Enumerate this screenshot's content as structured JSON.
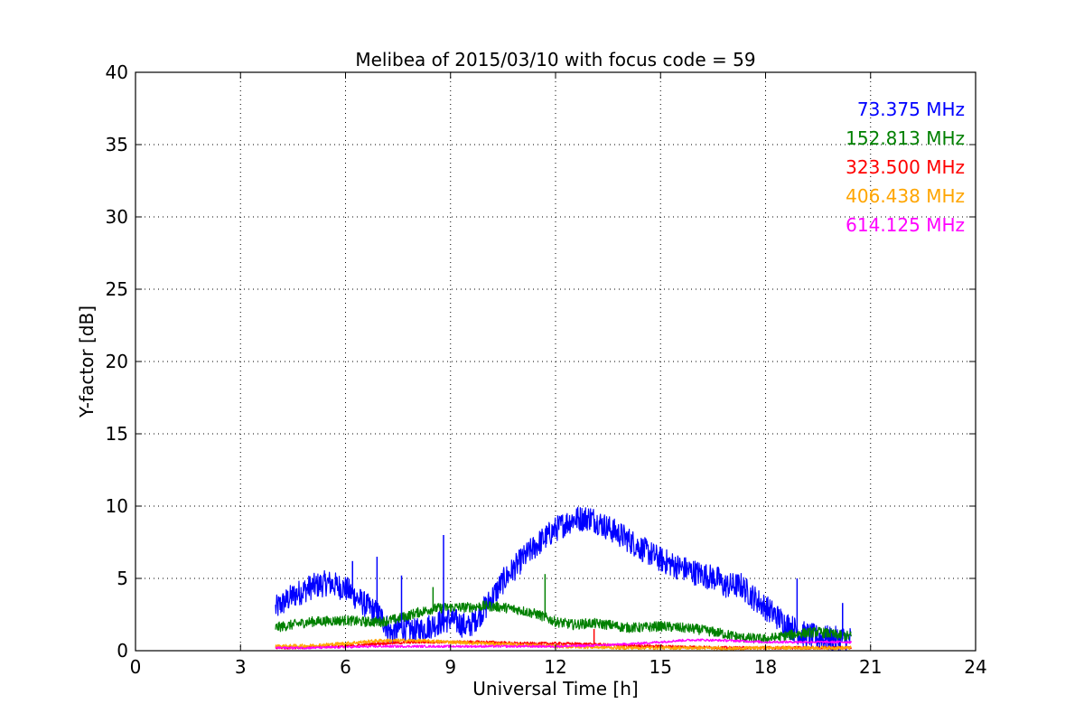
{
  "chart_data": {
    "type": "line",
    "title": "Melibea of 2015/03/10 with focus code = 59",
    "xlabel": "Universal Time [h]",
    "ylabel": "Y-factor [dB]",
    "xlim": [
      0,
      24
    ],
    "ylim": [
      0,
      40
    ],
    "xticks": [
      "0",
      "3",
      "6",
      "9",
      "12",
      "15",
      "18",
      "21",
      "24"
    ],
    "yticks": [
      "0",
      "5",
      "10",
      "15",
      "20",
      "25",
      "30",
      "35",
      "40"
    ],
    "grid": true,
    "legend_placement": "top-right",
    "series": [
      {
        "name": "73.375 MHz",
        "color": "#0000ff",
        "noise": 0.9,
        "points": [
          [
            4.0,
            2.9
          ],
          [
            4.5,
            3.8
          ],
          [
            5.0,
            4.4
          ],
          [
            5.5,
            4.7
          ],
          [
            6.0,
            4.3
          ],
          [
            6.5,
            3.3
          ],
          [
            7.0,
            2.4
          ],
          [
            7.3,
            1.2
          ],
          [
            7.6,
            1.6
          ],
          [
            8.0,
            1.3
          ],
          [
            8.5,
            1.8
          ],
          [
            9.0,
            2.2
          ],
          [
            9.5,
            1.6
          ],
          [
            10.0,
            3.0
          ],
          [
            10.5,
            4.8
          ],
          [
            11.0,
            6.2
          ],
          [
            11.5,
            7.4
          ],
          [
            12.0,
            8.4
          ],
          [
            12.5,
            9.1
          ],
          [
            13.0,
            9.2
          ],
          [
            13.5,
            8.5
          ],
          [
            14.0,
            7.8
          ],
          [
            14.5,
            7.0
          ],
          [
            15.0,
            6.3
          ],
          [
            15.5,
            5.8
          ],
          [
            16.0,
            5.4
          ],
          [
            16.7,
            4.9
          ],
          [
            16.75,
            4.5
          ],
          [
            17.3,
            4.5
          ],
          [
            17.6,
            3.8
          ],
          [
            18.0,
            3.0
          ],
          [
            18.5,
            2.0
          ],
          [
            19.0,
            1.2
          ],
          [
            19.5,
            0.9
          ],
          [
            20.0,
            0.8
          ],
          [
            20.45,
            0.8
          ]
        ]
      },
      {
        "name": "152.813 MHz",
        "color": "#008000",
        "noise": 0.35,
        "points": [
          [
            4.0,
            1.6
          ],
          [
            4.5,
            1.8
          ],
          [
            5.0,
            2.0
          ],
          [
            6.0,
            2.1
          ],
          [
            6.5,
            2.0
          ],
          [
            7.0,
            2.0
          ],
          [
            7.5,
            2.2
          ],
          [
            8.0,
            2.6
          ],
          [
            8.5,
            2.9
          ],
          [
            9.0,
            3.0
          ],
          [
            9.5,
            3.0
          ],
          [
            10.0,
            3.1
          ],
          [
            10.5,
            3.0
          ],
          [
            11.0,
            2.8
          ],
          [
            11.5,
            2.5
          ],
          [
            12.0,
            2.0
          ],
          [
            12.5,
            1.8
          ],
          [
            13.0,
            1.9
          ],
          [
            13.5,
            1.8
          ],
          [
            14.0,
            1.6
          ],
          [
            14.5,
            1.6
          ],
          [
            15.0,
            1.7
          ],
          [
            15.5,
            1.6
          ],
          [
            16.0,
            1.5
          ],
          [
            16.75,
            1.2
          ],
          [
            17.3,
            0.9
          ],
          [
            18.0,
            0.8
          ],
          [
            18.5,
            1.0
          ],
          [
            19.0,
            1.2
          ],
          [
            19.5,
            1.3
          ],
          [
            20.0,
            1.1
          ],
          [
            20.45,
            1.0
          ]
        ]
      },
      {
        "name": "323.500 MHz",
        "color": "#ff0000",
        "noise": 0.1,
        "points": [
          [
            4.0,
            0.2
          ],
          [
            5.0,
            0.25
          ],
          [
            6.0,
            0.3
          ],
          [
            7.0,
            0.5
          ],
          [
            8.0,
            0.6
          ],
          [
            9.0,
            0.6
          ],
          [
            10.0,
            0.6
          ],
          [
            11.0,
            0.5
          ],
          [
            12.0,
            0.5
          ],
          [
            13.0,
            0.45
          ],
          [
            14.0,
            0.35
          ],
          [
            15.0,
            0.3
          ],
          [
            16.0,
            0.25
          ],
          [
            17.0,
            0.2
          ],
          [
            18.0,
            0.2
          ],
          [
            19.0,
            0.2
          ],
          [
            20.45,
            0.2
          ]
        ]
      },
      {
        "name": "406.438 MHz",
        "color": "#ffa500",
        "noise": 0.12,
        "points": [
          [
            4.0,
            0.3
          ],
          [
            5.0,
            0.35
          ],
          [
            6.0,
            0.5
          ],
          [
            6.5,
            0.6
          ],
          [
            7.0,
            0.7
          ],
          [
            8.0,
            0.7
          ],
          [
            9.0,
            0.6
          ],
          [
            10.0,
            0.5
          ],
          [
            11.0,
            0.4
          ],
          [
            12.0,
            0.3
          ],
          [
            13.0,
            0.25
          ],
          [
            14.0,
            0.2
          ],
          [
            15.0,
            0.2
          ],
          [
            16.0,
            0.2
          ],
          [
            17.0,
            0.15
          ],
          [
            18.0,
            0.2
          ],
          [
            19.0,
            0.2
          ],
          [
            20.45,
            0.2
          ]
        ]
      },
      {
        "name": "614.125 MHz",
        "color": "#ff00ff",
        "noise": 0.08,
        "points": [
          [
            4.0,
            0.2
          ],
          [
            5.0,
            0.2
          ],
          [
            6.0,
            0.25
          ],
          [
            7.0,
            0.3
          ],
          [
            8.0,
            0.3
          ],
          [
            9.0,
            0.3
          ],
          [
            10.0,
            0.3
          ],
          [
            11.0,
            0.3
          ],
          [
            12.0,
            0.3
          ],
          [
            13.0,
            0.35
          ],
          [
            14.0,
            0.45
          ],
          [
            15.0,
            0.6
          ],
          [
            15.5,
            0.7
          ],
          [
            16.0,
            0.75
          ],
          [
            17.0,
            0.7
          ],
          [
            18.0,
            0.6
          ],
          [
            19.0,
            0.6
          ],
          [
            20.0,
            0.6
          ],
          [
            20.45,
            0.6
          ]
        ]
      }
    ],
    "spikes": [
      {
        "series": 0,
        "x": 8.8,
        "y": 8.0
      },
      {
        "series": 0,
        "x": 6.2,
        "y": 6.2
      },
      {
        "series": 0,
        "x": 6.9,
        "y": 6.5
      },
      {
        "series": 0,
        "x": 7.6,
        "y": 5.2
      },
      {
        "series": 0,
        "x": 18.9,
        "y": 5.0
      },
      {
        "series": 0,
        "x": 20.2,
        "y": 3.3
      },
      {
        "series": 1,
        "x": 11.7,
        "y": 5.3
      },
      {
        "series": 1,
        "x": 8.5,
        "y": 4.4
      },
      {
        "series": 2,
        "x": 13.1,
        "y": 1.5
      }
    ]
  }
}
